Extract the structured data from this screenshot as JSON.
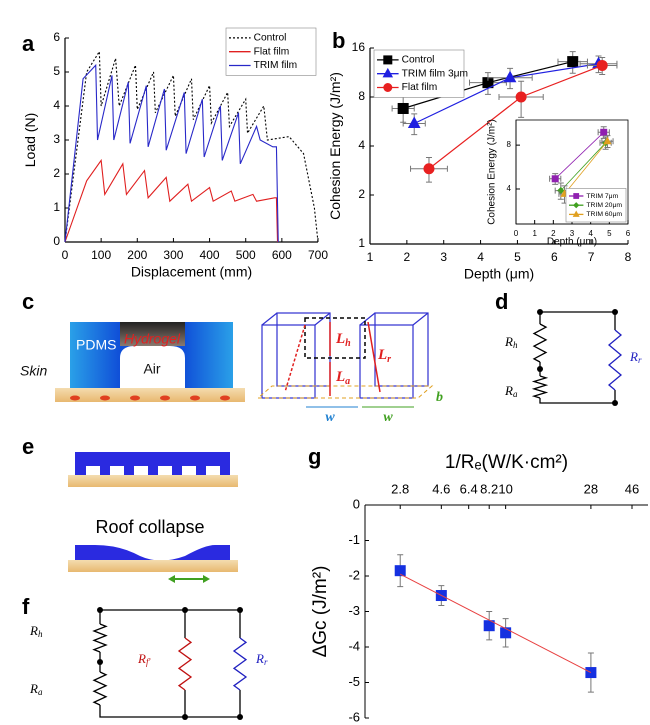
{
  "panels": {
    "a": "a",
    "b": "b",
    "c": "c",
    "d": "d",
    "e": "e",
    "f": "f",
    "g": "g"
  },
  "chart_data": [
    {
      "type": "line",
      "xlabel": "Displacement (mm)",
      "ylabel": "Load (N)",
      "xlim": [
        0,
        700
      ],
      "ylim": [
        0,
        6
      ],
      "xticks": [
        0,
        100,
        200,
        300,
        400,
        500,
        600,
        700
      ],
      "yticks": [
        0,
        1,
        2,
        3,
        4,
        5,
        6
      ],
      "legend": "upper right",
      "series": [
        {
          "name": "Control",
          "color": "#000000",
          "dash": "dotted",
          "x": [
            0,
            60,
            95,
            100,
            140,
            150,
            195,
            200,
            245,
            250,
            300,
            305,
            350,
            355,
            400,
            405,
            450,
            455,
            500,
            505,
            550,
            560,
            620,
            660,
            690,
            700
          ],
          "y": [
            0,
            5.0,
            5.6,
            4.0,
            5.4,
            4.0,
            5.2,
            3.9,
            5.0,
            3.8,
            4.9,
            3.7,
            4.8,
            3.6,
            4.6,
            3.5,
            4.4,
            3.4,
            4.2,
            3.2,
            4.0,
            3.0,
            3.1,
            2.6,
            1.0,
            0
          ]
        },
        {
          "name": "Flat film",
          "color": "#e02020",
          "dash": "solid",
          "x": [
            0,
            60,
            100,
            110,
            160,
            170,
            220,
            230,
            280,
            290,
            340,
            350,
            400,
            410,
            460,
            470,
            520,
            530,
            580,
            585,
            588
          ],
          "y": [
            0,
            1.8,
            2.4,
            1.4,
            2.3,
            1.4,
            2.1,
            1.3,
            1.9,
            1.2,
            1.7,
            1.2,
            1.6,
            1.2,
            1.5,
            1.2,
            1.4,
            1.2,
            1.3,
            1.3,
            0
          ]
        },
        {
          "name": "TRIM film",
          "color": "#2828c8",
          "dash": "solid",
          "x": [
            0,
            50,
            85,
            90,
            130,
            135,
            175,
            180,
            225,
            230,
            275,
            280,
            330,
            335,
            380,
            385,
            430,
            435,
            480,
            485,
            530,
            540,
            575,
            585,
            590
          ],
          "y": [
            0,
            4.8,
            5.2,
            3.0,
            4.9,
            3.0,
            4.7,
            2.9,
            4.6,
            2.8,
            4.5,
            2.7,
            4.4,
            2.6,
            4.2,
            2.5,
            4.0,
            2.4,
            3.8,
            2.3,
            3.4,
            3.0,
            2.8,
            2.8,
            0
          ]
        }
      ]
    },
    {
      "type": "scatter",
      "xlabel": "Depth (μm)",
      "ylabel": "Cohesion Energy (J/m²)",
      "xlim": [
        1,
        8
      ],
      "ylim": [
        1,
        16
      ],
      "ylog": true,
      "xticks": [
        1,
        2,
        3,
        4,
        5,
        6,
        7,
        8
      ],
      "yticks": [
        1,
        2,
        4,
        8,
        16
      ],
      "legend": "upper left",
      "connect": true,
      "series": [
        {
          "name": "Control",
          "color": "#000000",
          "marker": "square",
          "x": [
            1.9,
            4.2,
            6.5
          ],
          "y": [
            6.8,
            9.8,
            13.2
          ],
          "xerr": [
            0.3,
            0.5,
            0.4
          ],
          "yerr": [
            1.2,
            1.5,
            2
          ]
        },
        {
          "name": "TRIM film 3μm",
          "color": "#2020e0",
          "marker": "triangle",
          "x": [
            2.2,
            4.8,
            7.2
          ],
          "y": [
            5.5,
            10.5,
            12.8
          ],
          "xerr": [
            0.3,
            0.6,
            0.5
          ],
          "yerr": [
            0.8,
            1.5,
            1.5
          ]
        },
        {
          "name": "Flat film",
          "color": "#e82020",
          "marker": "circle",
          "x": [
            2.6,
            5.1,
            7.3
          ],
          "y": [
            2.9,
            8,
            12.5
          ],
          "xerr": [
            0.5,
            0.6,
            0.4
          ],
          "yerr": [
            0.5,
            2,
            1.5
          ]
        }
      ]
    },
    {
      "type": "scatter",
      "xlabel": "Depth (μm)",
      "ylabel": "Cohesion Energy (J/m²)",
      "xlim": [
        0,
        6
      ],
      "ylim": [
        2.3,
        11.9
      ],
      "ylog": true,
      "xticks": [
        0,
        1,
        2,
        3,
        4,
        5,
        6
      ],
      "yticks": [
        4,
        8
      ],
      "legend": "lower right",
      "connect": true,
      "series": [
        {
          "name": "TRIM 7μm",
          "color": "#9020b0",
          "marker": "square",
          "x": [
            2.1,
            4.7
          ],
          "y": [
            4.7,
            9.8
          ],
          "xerr": [
            0.3,
            0.3
          ],
          "yerr": [
            0.4,
            0.9
          ]
        },
        {
          "name": "TRIM 20μm",
          "color": "#40a020",
          "marker": "diamond",
          "x": [
            2.4,
            4.8
          ],
          "y": [
            3.9,
            8.3
          ],
          "xerr": [
            0.3,
            0.3
          ],
          "yerr": [
            0.5,
            0.8
          ]
        },
        {
          "name": "TRIM 60μm",
          "color": "#e0a020",
          "marker": "triangle",
          "x": [
            2.6,
            4.9
          ],
          "y": [
            3.7,
            8.5
          ],
          "xerr": [
            0.3,
            0.3
          ],
          "yerr": [
            0.5,
            0.8
          ]
        }
      ]
    },
    {
      "type": "scatter",
      "xlabel": "1/Rₑ(W/K·cm²)",
      "ylabel": "ΔGc (J/m²)",
      "xlim": [
        1.83,
        55.8
      ],
      "xlog": true,
      "xaxis": "top",
      "ylim": [
        -6,
        0
      ],
      "xticks": [
        2.8,
        4.6,
        6.4,
        8.2,
        10,
        28,
        46
      ],
      "yticks": [
        0,
        -1,
        -2,
        -3,
        -4,
        -5,
        -6
      ],
      "connect": false,
      "series": [
        {
          "name": null,
          "color": "#1530e0",
          "marker": "square",
          "x": [
            2.8,
            4.6,
            8.2,
            10,
            28
          ],
          "y": [
            -1.85,
            -2.55,
            -3.4,
            -3.6,
            -4.72
          ],
          "yerr": [
            0.45,
            0.28,
            0.4,
            0.4,
            0.55
          ]
        }
      ],
      "fit": {
        "color": "#e84040",
        "x": [
          2.8,
          28
        ],
        "y": [
          -1.95,
          -4.72
        ]
      }
    }
  ],
  "diagram_c": {
    "pdms": "PDMS",
    "hydrogel": "Hydrogel",
    "air": "Air",
    "skin": "Skin",
    "Lh": {
      "base": "L",
      "sub": "h"
    },
    "La": {
      "base": "L",
      "sub": "a"
    },
    "Lr": {
      "base": "L",
      "sub": "r"
    },
    "w1": "w",
    "w2": "w",
    "b": "b"
  },
  "diagram_d": {
    "Rh": {
      "base": "R",
      "sub": "h"
    },
    "Ra": {
      "base": "R",
      "sub": "a"
    },
    "Rr": {
      "base": "R",
      "sub": "r"
    }
  },
  "diagram_e": {
    "caption": "Roof collapse"
  },
  "diagram_f": {
    "Rh": {
      "base": "R",
      "sub": "h"
    },
    "Ra": {
      "base": "R",
      "sub": "a"
    },
    "Rf": {
      "base": "R",
      "sub": "f′"
    },
    "Rr": {
      "base": "R",
      "sub": "r"
    }
  }
}
